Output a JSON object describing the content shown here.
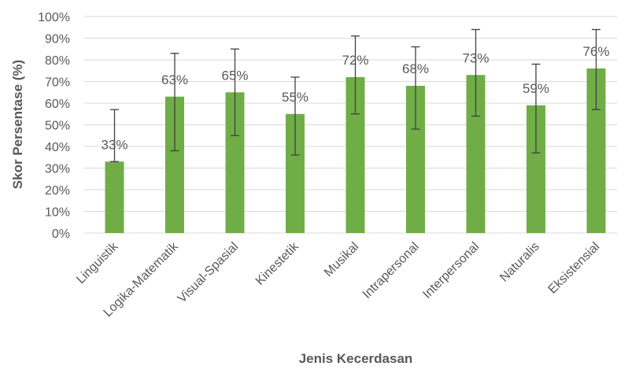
{
  "chart_data": {
    "type": "bar",
    "xlabel": "Jenis Kecerdasan",
    "ylabel": "Skor Persentase (%)",
    "ylim": [
      0,
      100
    ],
    "ytick_step": 10,
    "ytick_suffix": "%",
    "grid": true,
    "legend": "none",
    "bar_color": "#70ad47",
    "categories": [
      "Linguistik",
      "Logika-Matematik",
      "Visual-Spasial",
      "Kinestetik",
      "Musikal",
      "Intrapersonal",
      "Interpersonal",
      "Naturalis",
      "Eksistensial"
    ],
    "values": [
      33,
      63,
      65,
      55,
      72,
      68,
      73,
      59,
      76
    ],
    "data_labels": [
      "33%",
      "63%",
      "65%",
      "55%",
      "72%",
      "68%",
      "73%",
      "59%",
      "76%"
    ],
    "error_low": [
      33,
      38,
      45,
      36,
      55,
      48,
      54,
      37,
      57
    ],
    "error_high": [
      57,
      83,
      85,
      72,
      91,
      86,
      94,
      78,
      94
    ]
  }
}
